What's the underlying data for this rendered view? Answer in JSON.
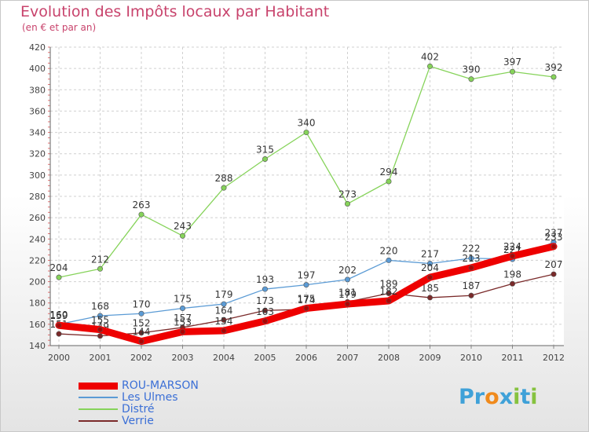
{
  "title": "Evolution des Impôts locaux par Habitant",
  "subtitle": "(en € et par an)",
  "logo": {
    "text": "Proxiti",
    "letters": [
      {
        "char": "P",
        "color": "#3fa1d8"
      },
      {
        "char": "r",
        "color": "#3fa1d8"
      },
      {
        "char": "o",
        "color": "#f08a1c"
      },
      {
        "char": "x",
        "color": "#3fa1d8"
      },
      {
        "char": "i",
        "color": "#86c23f"
      },
      {
        "char": "t",
        "color": "#3fa1d8"
      },
      {
        "char": "i",
        "color": "#86c23f"
      }
    ]
  },
  "chart_data": {
    "type": "line",
    "categories": [
      "2000",
      "2001",
      "2002",
      "2003",
      "2004",
      "2005",
      "2006",
      "2007",
      "2008",
      "2009",
      "2010",
      "2011",
      "2012"
    ],
    "ylim": [
      140,
      420
    ],
    "yticks": [
      140,
      160,
      180,
      200,
      220,
      240,
      260,
      280,
      300,
      320,
      340,
      360,
      380,
      400,
      420
    ],
    "grid": true,
    "legend_position": "bottom-left",
    "series": [
      {
        "name": "ROU-MARSON",
        "color": "#ee0000",
        "values": [
          159,
          155,
          144,
          153,
          154,
          163,
          175,
          179,
          182,
          204,
          213,
          224,
          233
        ]
      },
      {
        "name": "Les Ulmes",
        "color": "#5b9bd5",
        "values": [
          160,
          168,
          170,
          175,
          179,
          193,
          197,
          202,
          220,
          217,
          222,
          221,
          237
        ]
      },
      {
        "name": "Distré",
        "color": "#86d35a",
        "values": [
          204,
          212,
          263,
          243,
          288,
          315,
          340,
          273,
          294,
          402,
          390,
          397,
          392
        ]
      },
      {
        "name": "Verrie",
        "color": "#7a2a2a",
        "values": [
          151,
          149,
          152,
          157,
          164,
          173,
          174,
          181,
          189,
          185,
          187,
          198,
          207
        ]
      }
    ]
  }
}
